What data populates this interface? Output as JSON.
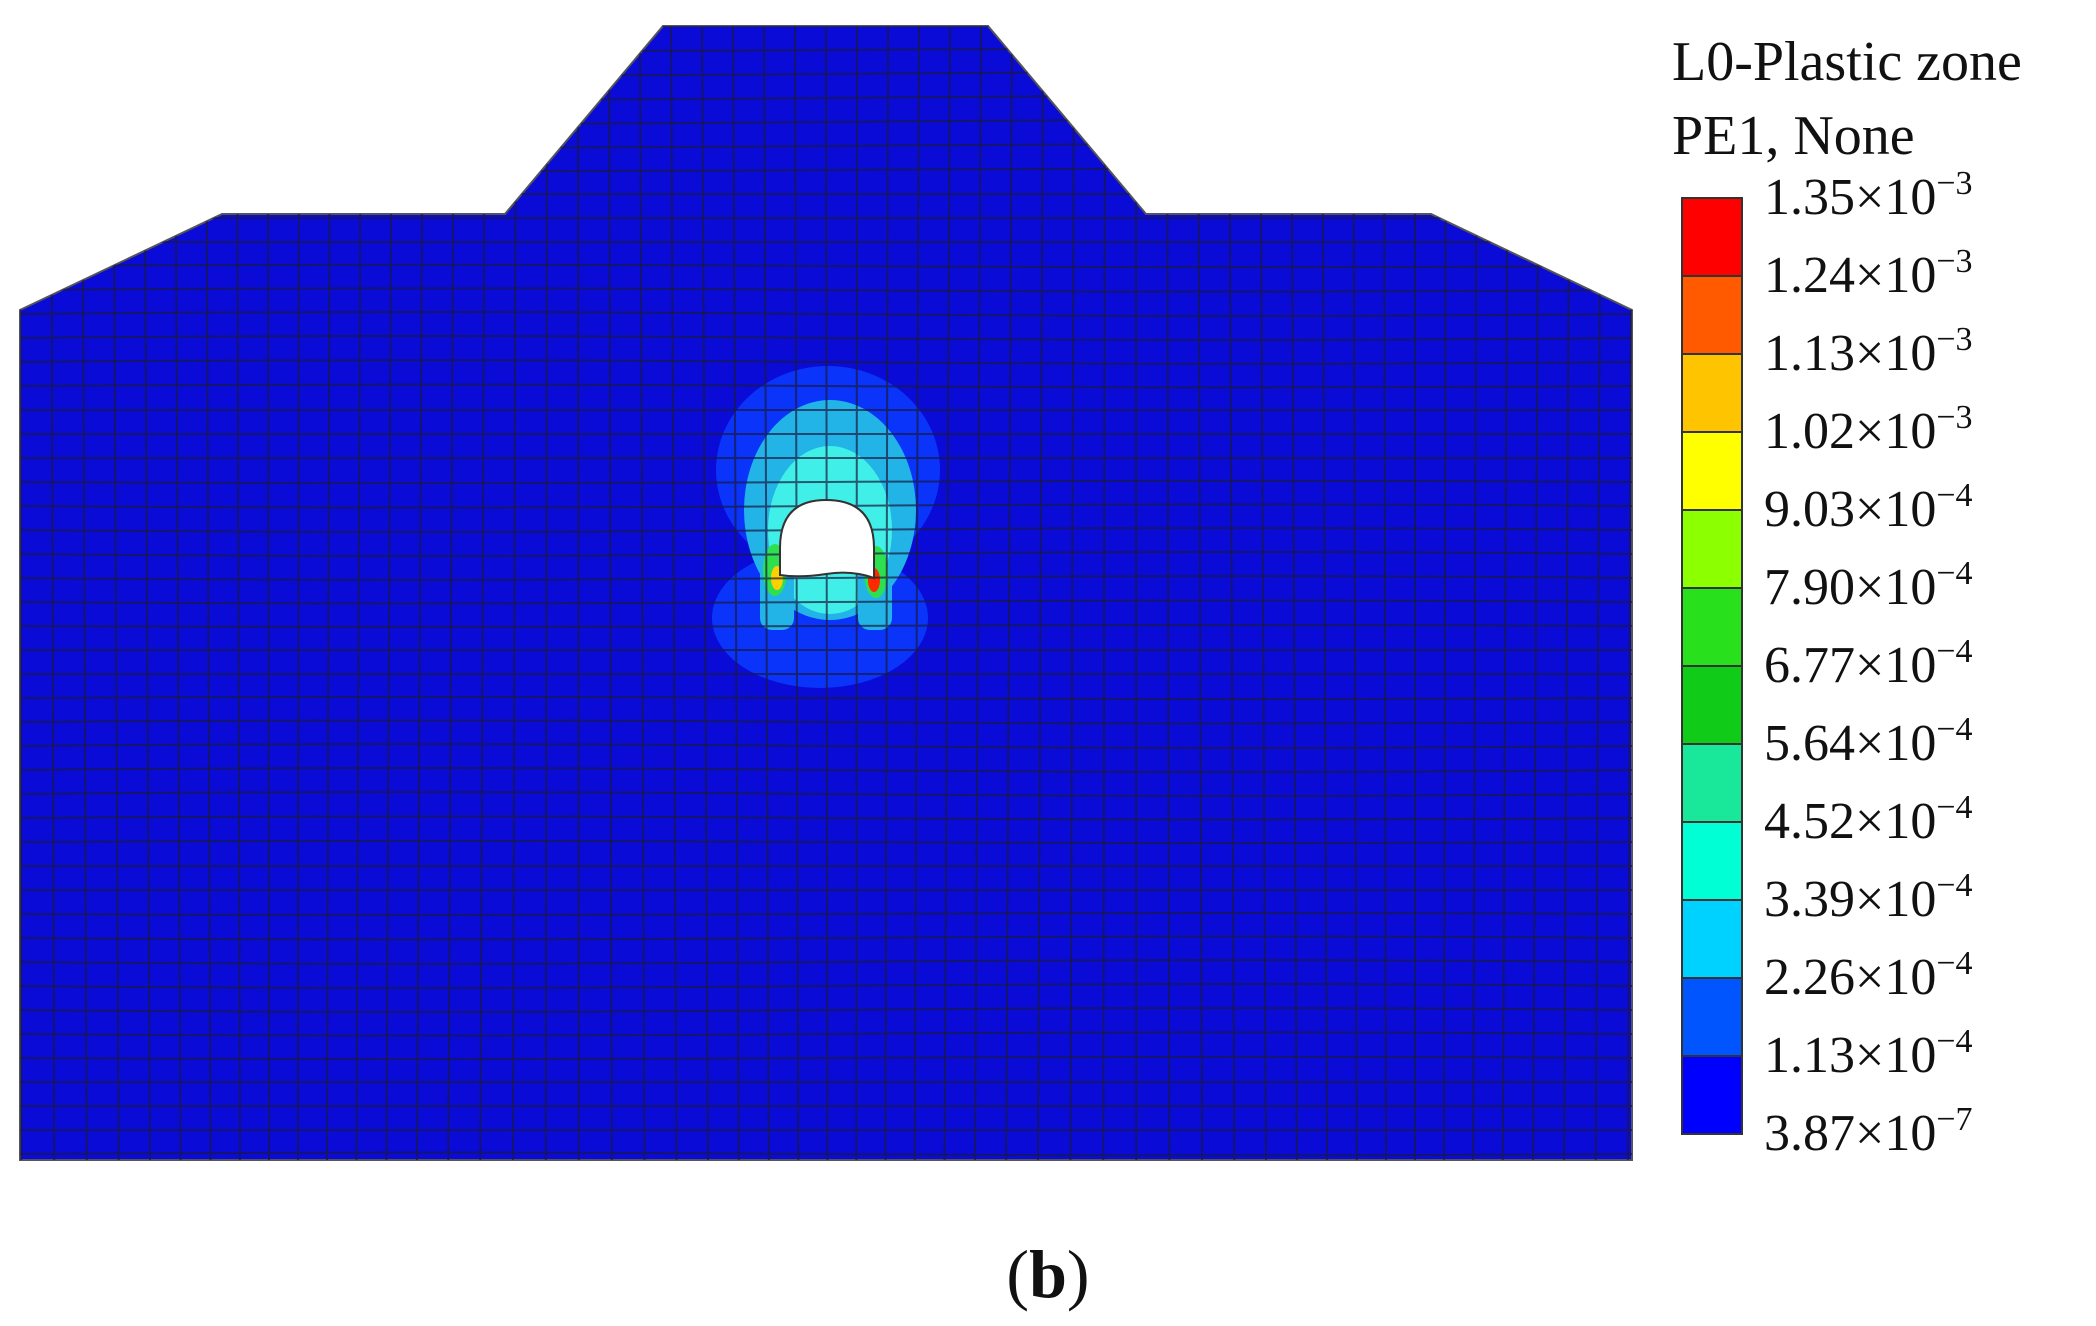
{
  "legend": {
    "title_line1": "L0-Plastic zone",
    "title_line2": "PE1, None",
    "entries": [
      {
        "mantissa": "1.35",
        "exponent": "−3"
      },
      {
        "mantissa": "1.24",
        "exponent": "−3"
      },
      {
        "mantissa": "1.13",
        "exponent": "−3"
      },
      {
        "mantissa": "1.02",
        "exponent": "−3"
      },
      {
        "mantissa": "9.03",
        "exponent": "−4"
      },
      {
        "mantissa": "7.90",
        "exponent": "−4"
      },
      {
        "mantissa": "6.77",
        "exponent": "−4"
      },
      {
        "mantissa": "5.64",
        "exponent": "−4"
      },
      {
        "mantissa": "4.52",
        "exponent": "−4"
      },
      {
        "mantissa": "3.39",
        "exponent": "−4"
      },
      {
        "mantissa": "2.26",
        "exponent": "−4"
      },
      {
        "mantissa": "1.13",
        "exponent": "−4"
      },
      {
        "mantissa": "3.87",
        "exponent": "−7"
      }
    ],
    "colors": [
      "#ff0000",
      "#ff5a00",
      "#ffc400",
      "#ffff00",
      "#8cff00",
      "#29e01c",
      "#10cc18",
      "#19e89a",
      "#00ffd4",
      "#00d2ff",
      "#0055ff",
      "#0000ff"
    ],
    "times_sign": "×10"
  },
  "model": {
    "mesh_color": "#0b0bd8",
    "plastic_zone_colors": [
      "#0a3cff",
      "#22b4e6",
      "#40f0e8",
      "#2ee050",
      "#ffd000",
      "#ff2800"
    ]
  },
  "caption": {
    "open": "(",
    "label": "b",
    "close": ")"
  }
}
